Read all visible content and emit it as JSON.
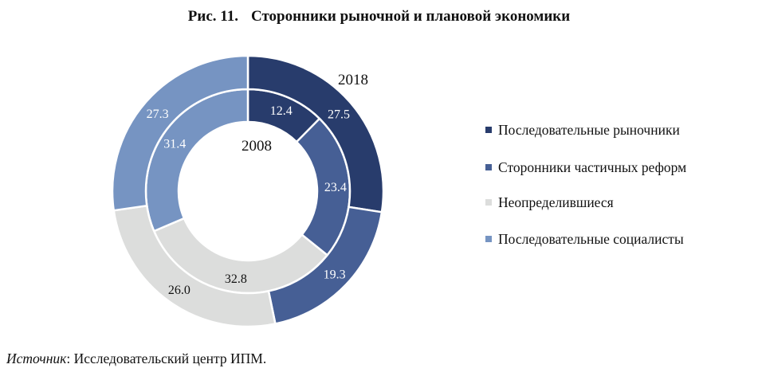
{
  "figure": {
    "number": "Рис. 11.",
    "title": "Сторонники рыночной и плановой экономики"
  },
  "source": {
    "label": "Источник",
    "separator": ": ",
    "text": "Исследовательский центр ИПМ."
  },
  "colors": {
    "consistent_market": "#283c6c",
    "partial_reform": "#465f95",
    "undecided": "#dcdddc",
    "consistent_socialist": "#7694c2"
  },
  "chart_data": {
    "type": "donut",
    "categories": [
      "Последовательные рыночники",
      "Сторонники частичных реформ",
      "Неопределившиеся",
      "Последовательные социалисты"
    ],
    "series": [
      {
        "name": "2008",
        "ring": "inner",
        "values": [
          12.4,
          23.4,
          32.8,
          31.4
        ]
      },
      {
        "name": "2018",
        "ring": "outer",
        "values": [
          27.5,
          19.3,
          26.0,
          27.3
        ]
      }
    ],
    "value_labels": {
      "2008": [
        "12.4",
        "23.4",
        "32.8",
        "31.4"
      ],
      "2018": [
        "27.5",
        "19.3",
        "26.0",
        "27.3"
      ]
    },
    "legend_position": "right",
    "direction": "clockwise",
    "start": "top"
  }
}
